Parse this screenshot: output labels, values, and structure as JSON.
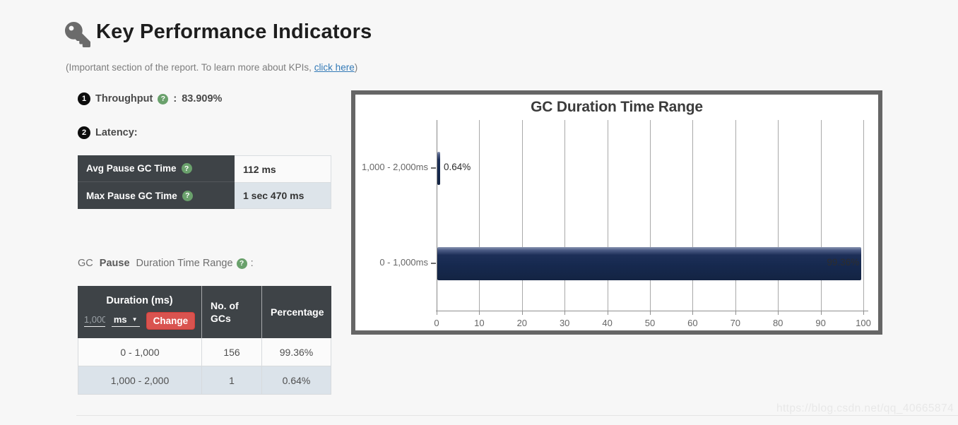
{
  "header": {
    "title": "Key Performance Indicators",
    "subtitle_prefix": "(Important section of the report. To learn more about KPIs, ",
    "subtitle_link": "click here",
    "subtitle_suffix": ")"
  },
  "icons": {
    "question_mark": "?",
    "caret_down": "▼"
  },
  "kpis": {
    "throughput": {
      "badge": "1",
      "label": "Throughput",
      "colon": ":",
      "value": "83.909%"
    },
    "latency": {
      "badge": "2",
      "label": "Latency:"
    }
  },
  "latency_table": {
    "rows": [
      {
        "label": "Avg Pause GC Time",
        "value": "112 ms"
      },
      {
        "label": "Max Pause GC Time",
        "value": "1 sec 470 ms"
      }
    ]
  },
  "duration_section": {
    "heading": {
      "prefix": "GC ",
      "bold": "Pause",
      "rest": " Duration Time Range",
      "suffix": ":"
    },
    "table": {
      "headers": {
        "col1": "Duration (ms)",
        "col2": "No. of GCs",
        "col3": "Percentage"
      },
      "input_value": "1,000",
      "unit": "ms",
      "change_button": "Change",
      "rows": [
        {
          "duration": "0 - 1,000",
          "gcs": "156",
          "percentage": "99.36%"
        },
        {
          "duration": "1,000 - 2,000",
          "gcs": "1",
          "percentage": "0.64%"
        }
      ]
    }
  },
  "chart_data": {
    "type": "bar",
    "orientation": "horizontal",
    "title": "GC Duration Time Range",
    "categories": [
      "1,000 - 2,000ms",
      "0 - 1,000ms"
    ],
    "values": [
      0.64,
      99.36
    ],
    "value_labels": [
      "0.64%",
      "99.36%"
    ],
    "xlabel": "",
    "ylabel": "",
    "xlim": [
      0,
      100
    ],
    "x_ticks": [
      0,
      10,
      20,
      30,
      40,
      50,
      60,
      70,
      80,
      90,
      100
    ],
    "grid": true,
    "legend": false,
    "bar_color": "#16294f",
    "frame_color": "#666666"
  },
  "watermark": "https://blog.csdn.net/qq_40665874",
  "colors": {
    "accent_red": "#d9534f",
    "table_header_dark": "#3e4347",
    "row_alt_blue": "#dbe3ea",
    "link_blue": "#337ab7",
    "help_green": "#6aa16c",
    "bar_navy": "#16294f",
    "chart_border": "#666666"
  }
}
